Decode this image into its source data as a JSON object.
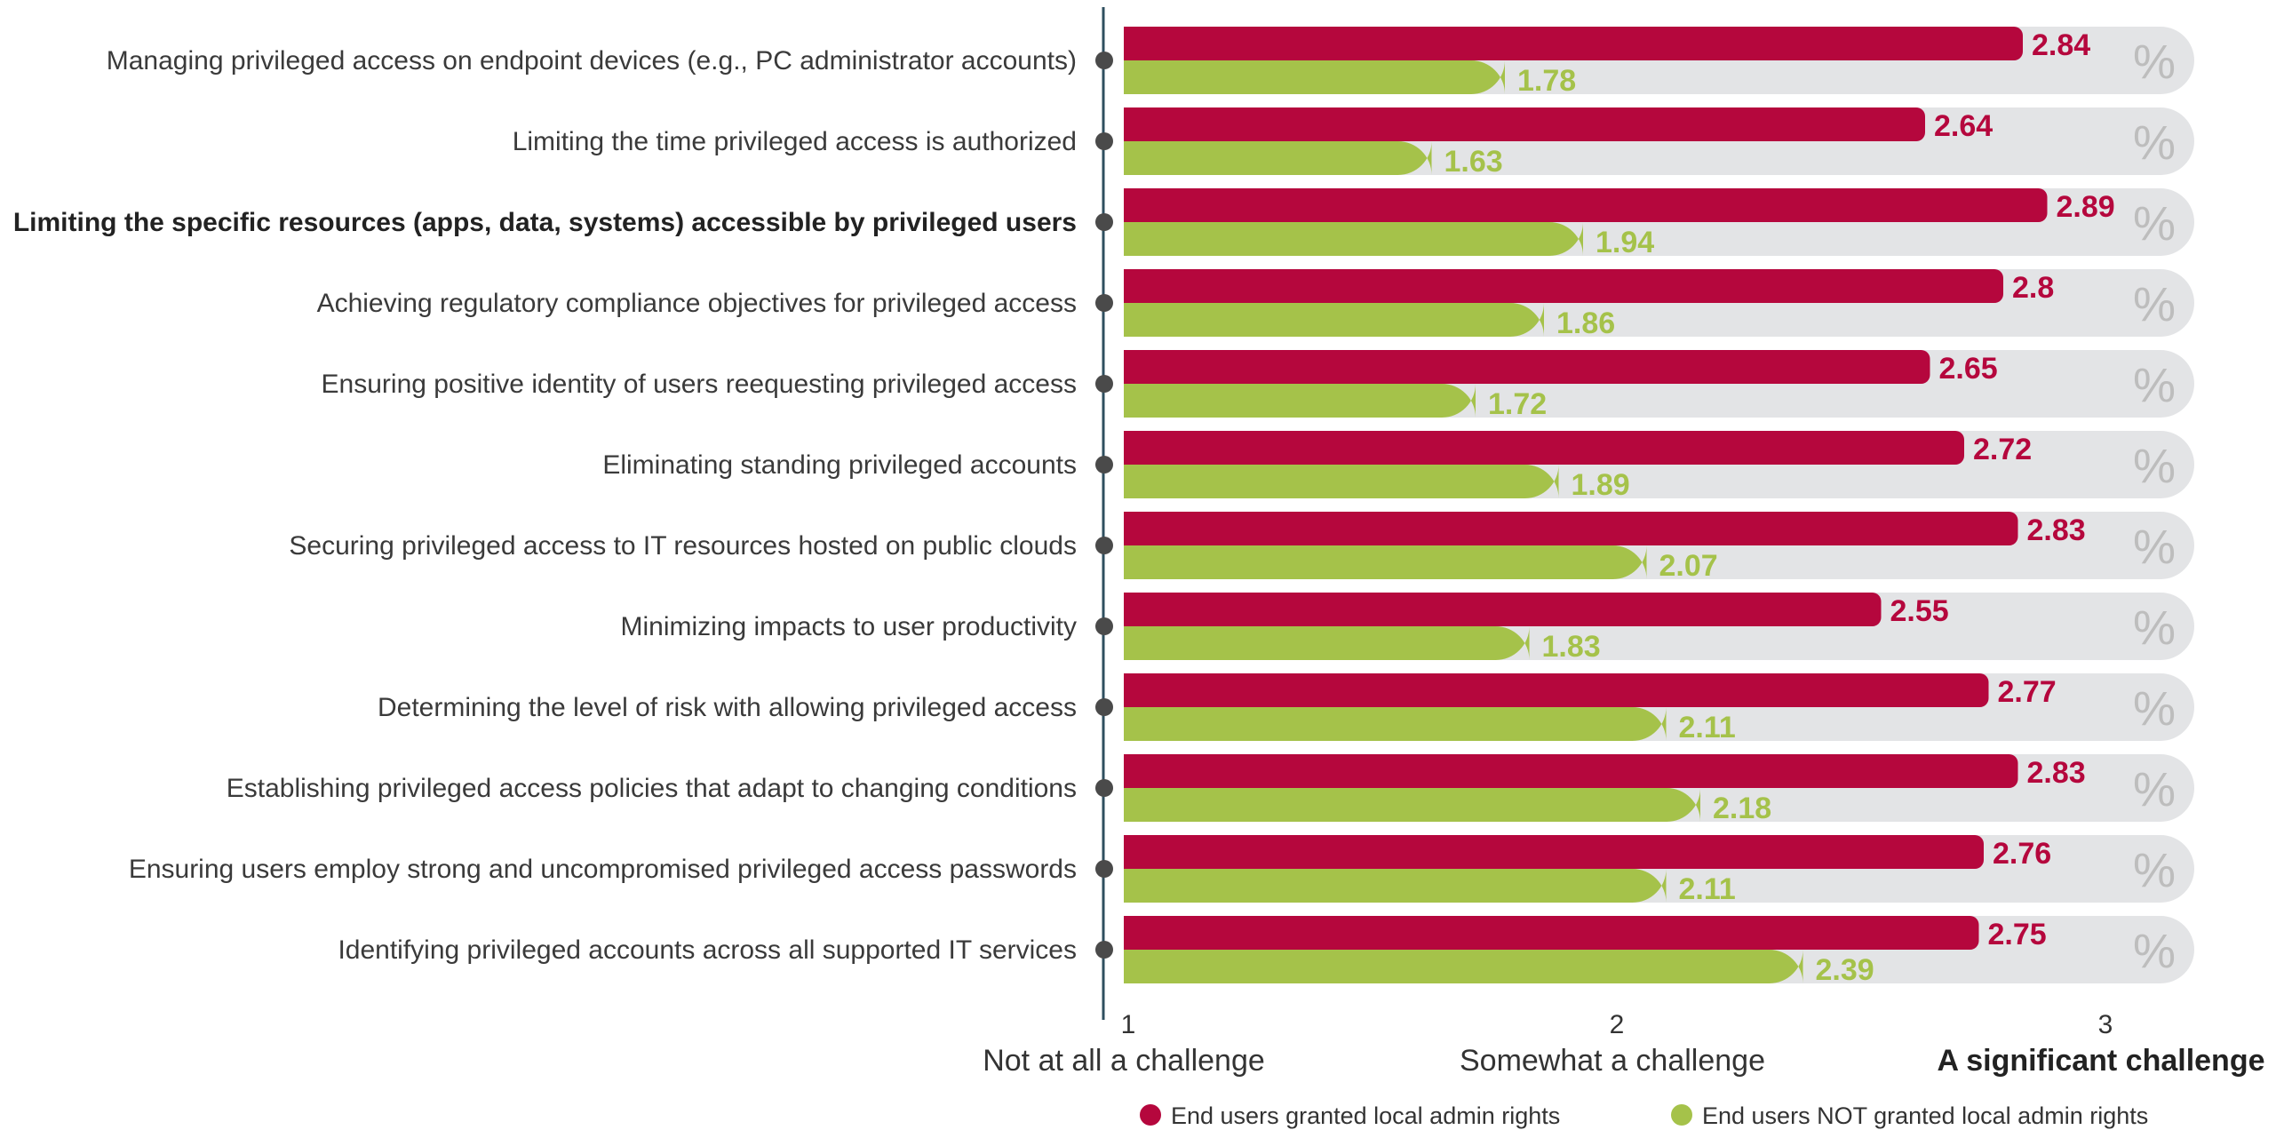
{
  "chart_data": {
    "type": "bar",
    "orientation": "horizontal",
    "categories": [
      "Managing privileged access on endpoint devices (e.g., PC administrator accounts)",
      "Limiting the time privileged access is authorized",
      "Limiting the specific resources (apps, data, systems) accessible by privileged users",
      "Achieving regulatory compliance objectives for privileged access",
      "Ensuring positive identity of users reequesting privileged access",
      "Eliminating standing privileged accounts",
      "Securing privileged access to IT resources hosted on public clouds",
      "Minimizing impacts to user productivity",
      "Determining the level of risk with allowing privileged access",
      "Establishing privileged access policies that adapt to changing conditions",
      "Ensuring users employ strong and uncompromised privileged access passwords",
      "Identifying privileged accounts across all supported IT services"
    ],
    "bold_category_index": 2,
    "series": [
      {
        "name": "End users granted local admin rights",
        "color": "#b5073d",
        "values": [
          2.84,
          2.64,
          2.89,
          2.8,
          2.65,
          2.72,
          2.83,
          2.55,
          2.77,
          2.83,
          2.76,
          2.75
        ],
        "labels": [
          "2.84",
          "2.64",
          "2.89",
          "2.8",
          "2.65",
          "2.72",
          "2.83",
          "2.55",
          "2.77",
          "2.83",
          "2.76",
          "2.75"
        ]
      },
      {
        "name": "End users NOT granted local admin rights",
        "color": "#a5c24a",
        "values": [
          1.78,
          1.63,
          1.94,
          1.86,
          1.72,
          1.89,
          2.07,
          1.83,
          2.11,
          2.18,
          2.11,
          2.39
        ],
        "labels": [
          "1.78",
          "1.63",
          "1.94",
          "1.86",
          "1.72",
          "1.89",
          "2.07",
          "1.83",
          "2.11",
          "2.18",
          "2.11",
          "2.39"
        ]
      }
    ],
    "xlim": [
      1,
      3
    ],
    "x_ticks": [
      {
        "value": 1,
        "number": "1",
        "text": "Not at all a challenge",
        "bold": false
      },
      {
        "value": 2,
        "number": "2",
        "text": "Somewhat a challenge",
        "bold": false
      },
      {
        "value": 3,
        "number": "3",
        "text": "A significant challenge",
        "bold": true
      }
    ],
    "percent_symbol": "%",
    "track_color": "#e3e4e6",
    "legend_position": "bottom-right",
    "grid": false
  }
}
